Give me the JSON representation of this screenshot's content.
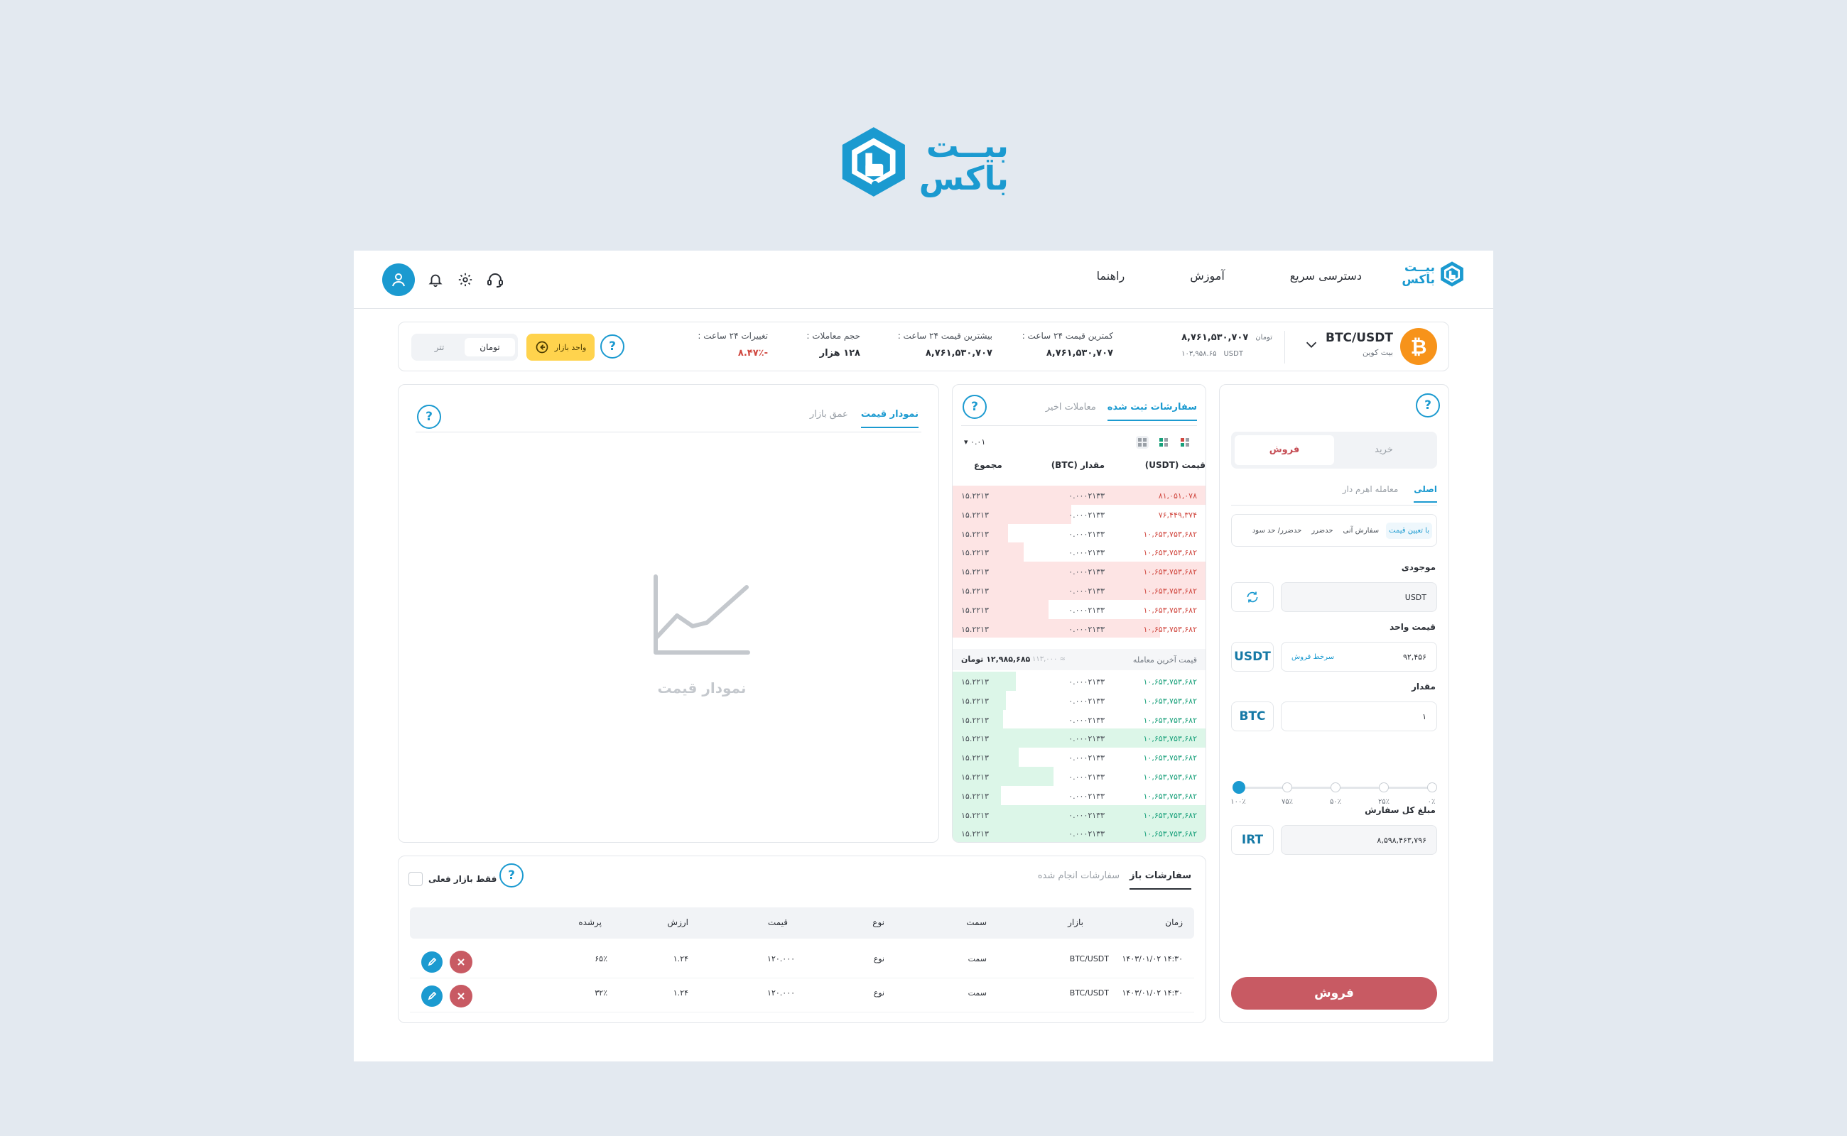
{
  "brand": {
    "line1": "بیــت",
    "line2": "باکس"
  },
  "nav": {
    "items": [
      "دسترسی سریع",
      "آموزش",
      "راهنما"
    ]
  },
  "ticker": {
    "pair": "BTC/USDT",
    "coin_name": "بیت کوین",
    "coin_symbol": "₿",
    "last_irt": "۸,۷۶۱,۵۳۰,۷۰۷",
    "last_irt_unit": "تومان",
    "last_usdt": "۱۰۳,۹۵۸.۶۵",
    "last_usdt_unit": "USDT",
    "low_label": "کمترین قیمت ۲۴ ساعت :",
    "low_value": "۸,۷۶۱,۵۳۰,۷۰۷",
    "high_label": "بیشترین قیمت ۲۴ ساعت :",
    "high_value": "۸,۷۶۱,۵۳۰,۷۰۷",
    "volume_label": "حجم معاملات :",
    "volume_value": "۱۲۸ هزار",
    "change_label": "تغییرات ۲۴ ساعت :",
    "change_value": "-۸.۴۷٪",
    "unit_btn": "واحد بازار",
    "toggle": [
      "تومان",
      "تتر"
    ]
  },
  "help": "?",
  "trade": {
    "seg": [
      "خرید",
      "فروش"
    ],
    "tabs": [
      "اصلی",
      "معامله اهرم دار"
    ],
    "order_types": [
      "با تعیین قیمت",
      "سفارش آنی",
      "حدضرر",
      "حدضرر/ حد سود"
    ],
    "balance_label": "موجودی",
    "balance_value": "USDT",
    "unit_price_label": "قیمت واحد",
    "unit_price_value": "۹۲,۴۵۶",
    "unit_price_hint": "سرخط فروش",
    "unit_price_currency": "USDT",
    "amount_label": "مقدار",
    "amount_value": "۱",
    "amount_currency": "BTC",
    "slider_labels": [
      "۰٪",
      "۲۵٪",
      "۵۰٪",
      "۷۵٪",
      "۱۰۰٪"
    ],
    "slider_value": 0,
    "total_label": "مبلغ کل سفارش",
    "total_value": "۸,۵۹۸,۴۶۳,۷۹۶",
    "total_currency": "IRT",
    "submit": "فروش"
  },
  "orderbook": {
    "tabs": [
      "سفارشات ثبت شده",
      "معاملات اخیر"
    ],
    "precision": "۰.۰۱",
    "headers": {
      "price": "قیمت (USDT)",
      "amount": "مقدار (BTC)",
      "total": "مجموع"
    },
    "asks": [
      {
        "price": "۸۱,۰۵۱,۰۷۸",
        "amount": "۰.۰۰۰۲۱۳۳",
        "total": "۱۵.۲۲۱۳",
        "depth": 1.0
      },
      {
        "price": "۷۶,۴۴۹,۳۷۴",
        "amount": "۰.۰۰۰۲۱۳۳",
        "total": "۱۵.۲۲۱۳",
        "depth": 0.47
      },
      {
        "price": "۱۰,۶۵۳,۷۵۳,۶۸۲",
        "amount": "۰.۰۰۰۲۱۳۳",
        "total": "۱۵.۲۲۱۳",
        "depth": 0.22
      },
      {
        "price": "۱۰,۶۵۳,۷۵۳,۶۸۲",
        "amount": "۰.۰۰۰۲۱۳۳",
        "total": "۱۵.۲۲۱۳",
        "depth": 0.28
      },
      {
        "price": "۱۰,۶۵۳,۷۵۳,۶۸۲",
        "amount": "۰.۰۰۰۲۱۳۳",
        "total": "۱۵.۲۲۱۳",
        "depth": 1.0
      },
      {
        "price": "۱۰,۶۵۳,۷۵۳,۶۸۲",
        "amount": "۰.۰۰۰۲۱۳۳",
        "total": "۱۵.۲۲۱۳",
        "depth": 1.0
      },
      {
        "price": "۱۰,۶۵۳,۷۵۳,۶۸۲",
        "amount": "۰.۰۰۰۲۱۳۳",
        "total": "۱۵.۲۲۱۳",
        "depth": 0.38
      },
      {
        "price": "۱۰,۶۵۳,۷۵۳,۶۸۲",
        "amount": "۰.۰۰۰۲۱۳۳",
        "total": "۱۵.۲۲۱۳",
        "depth": 0.82
      }
    ],
    "last_trade_label": "قیمت آخرین معامله",
    "last_trade_usdt": "≈ ۱۱۳,۰۰۰",
    "last_trade_irt": "۱۲,۹۸۵,۶۸۵ تومان",
    "bids": [
      {
        "price": "۱۰,۶۵۳,۷۵۳,۶۸۲",
        "amount": "۰.۰۰۰۲۱۳۳",
        "total": "۱۵.۲۲۱۳",
        "depth": 0.25
      },
      {
        "price": "۱۰,۶۵۳,۷۵۳,۶۸۲",
        "amount": "۰.۰۰۰۲۱۳۳",
        "total": "۱۵.۲۲۱۳",
        "depth": 0.21
      },
      {
        "price": "۱۰,۶۵۳,۷۵۳,۶۸۲",
        "amount": "۰.۰۰۰۲۱۳۳",
        "total": "۱۵.۲۲۱۳",
        "depth": 0.2
      },
      {
        "price": "۱۰,۶۵۳,۷۵۳,۶۸۲",
        "amount": "۰.۰۰۰۲۱۳۳",
        "total": "۱۵.۲۲۱۳",
        "depth": 1.0
      },
      {
        "price": "۱۰,۶۵۳,۷۵۳,۶۸۲",
        "amount": "۰.۰۰۰۲۱۳۳",
        "total": "۱۵.۲۲۱۳",
        "depth": 0.26
      },
      {
        "price": "۱۰,۶۵۳,۷۵۳,۶۸۲",
        "amount": "۰.۰۰۰۲۱۳۳",
        "total": "۱۵.۲۲۱۳",
        "depth": 0.4
      },
      {
        "price": "۱۰,۶۵۳,۷۵۳,۶۸۲",
        "amount": "۰.۰۰۰۲۱۳۳",
        "total": "۱۵.۲۲۱۳",
        "depth": 0.19
      },
      {
        "price": "۱۰,۶۵۳,۷۵۳,۶۸۲",
        "amount": "۰.۰۰۰۲۱۳۳",
        "total": "۱۵.۲۲۱۳",
        "depth": 1.0
      },
      {
        "price": "۱۰,۶۵۳,۷۵۳,۶۸۲",
        "amount": "۰.۰۰۰۲۱۳۳",
        "total": "۱۵.۲۲۱۳",
        "depth": 1.0
      }
    ]
  },
  "chart": {
    "tabs": [
      "نمودار قیمت",
      "عمق بازار"
    ],
    "placeholder": "نمودار قیمت"
  },
  "orders": {
    "tabs": [
      "سفارشات باز",
      "سفارشات انجام شده"
    ],
    "only_current": "فقط بازار فعلی",
    "headers": [
      "زمان",
      "بازار",
      "سمت",
      "نوع",
      "قیمت",
      "ارزش",
      "پرشده"
    ],
    "rows": [
      {
        "time": "۱۴:۳۰  ۱۴۰۳/۰۱/۰۲",
        "market": "BTC/USDT",
        "side": "سمت",
        "type": "نوع",
        "price": "۱۲۰.۰۰۰",
        "value": "۱.۲۴",
        "filled": "۶۵٪"
      },
      {
        "time": "۱۴:۳۰  ۱۴۰۳/۰۱/۰۲",
        "market": "BTC/USDT",
        "side": "سمت",
        "type": "نوع",
        "price": "۱۲۰.۰۰۰",
        "value": "۱.۲۴",
        "filled": "۳۲٪"
      }
    ]
  },
  "colors": {
    "brand": "#1b9ad0",
    "ask": "#d0473f",
    "bid": "#18a07a",
    "sell": "#c85a63",
    "coin": "#f7931a",
    "unit_btn": "#ffd34d"
  }
}
